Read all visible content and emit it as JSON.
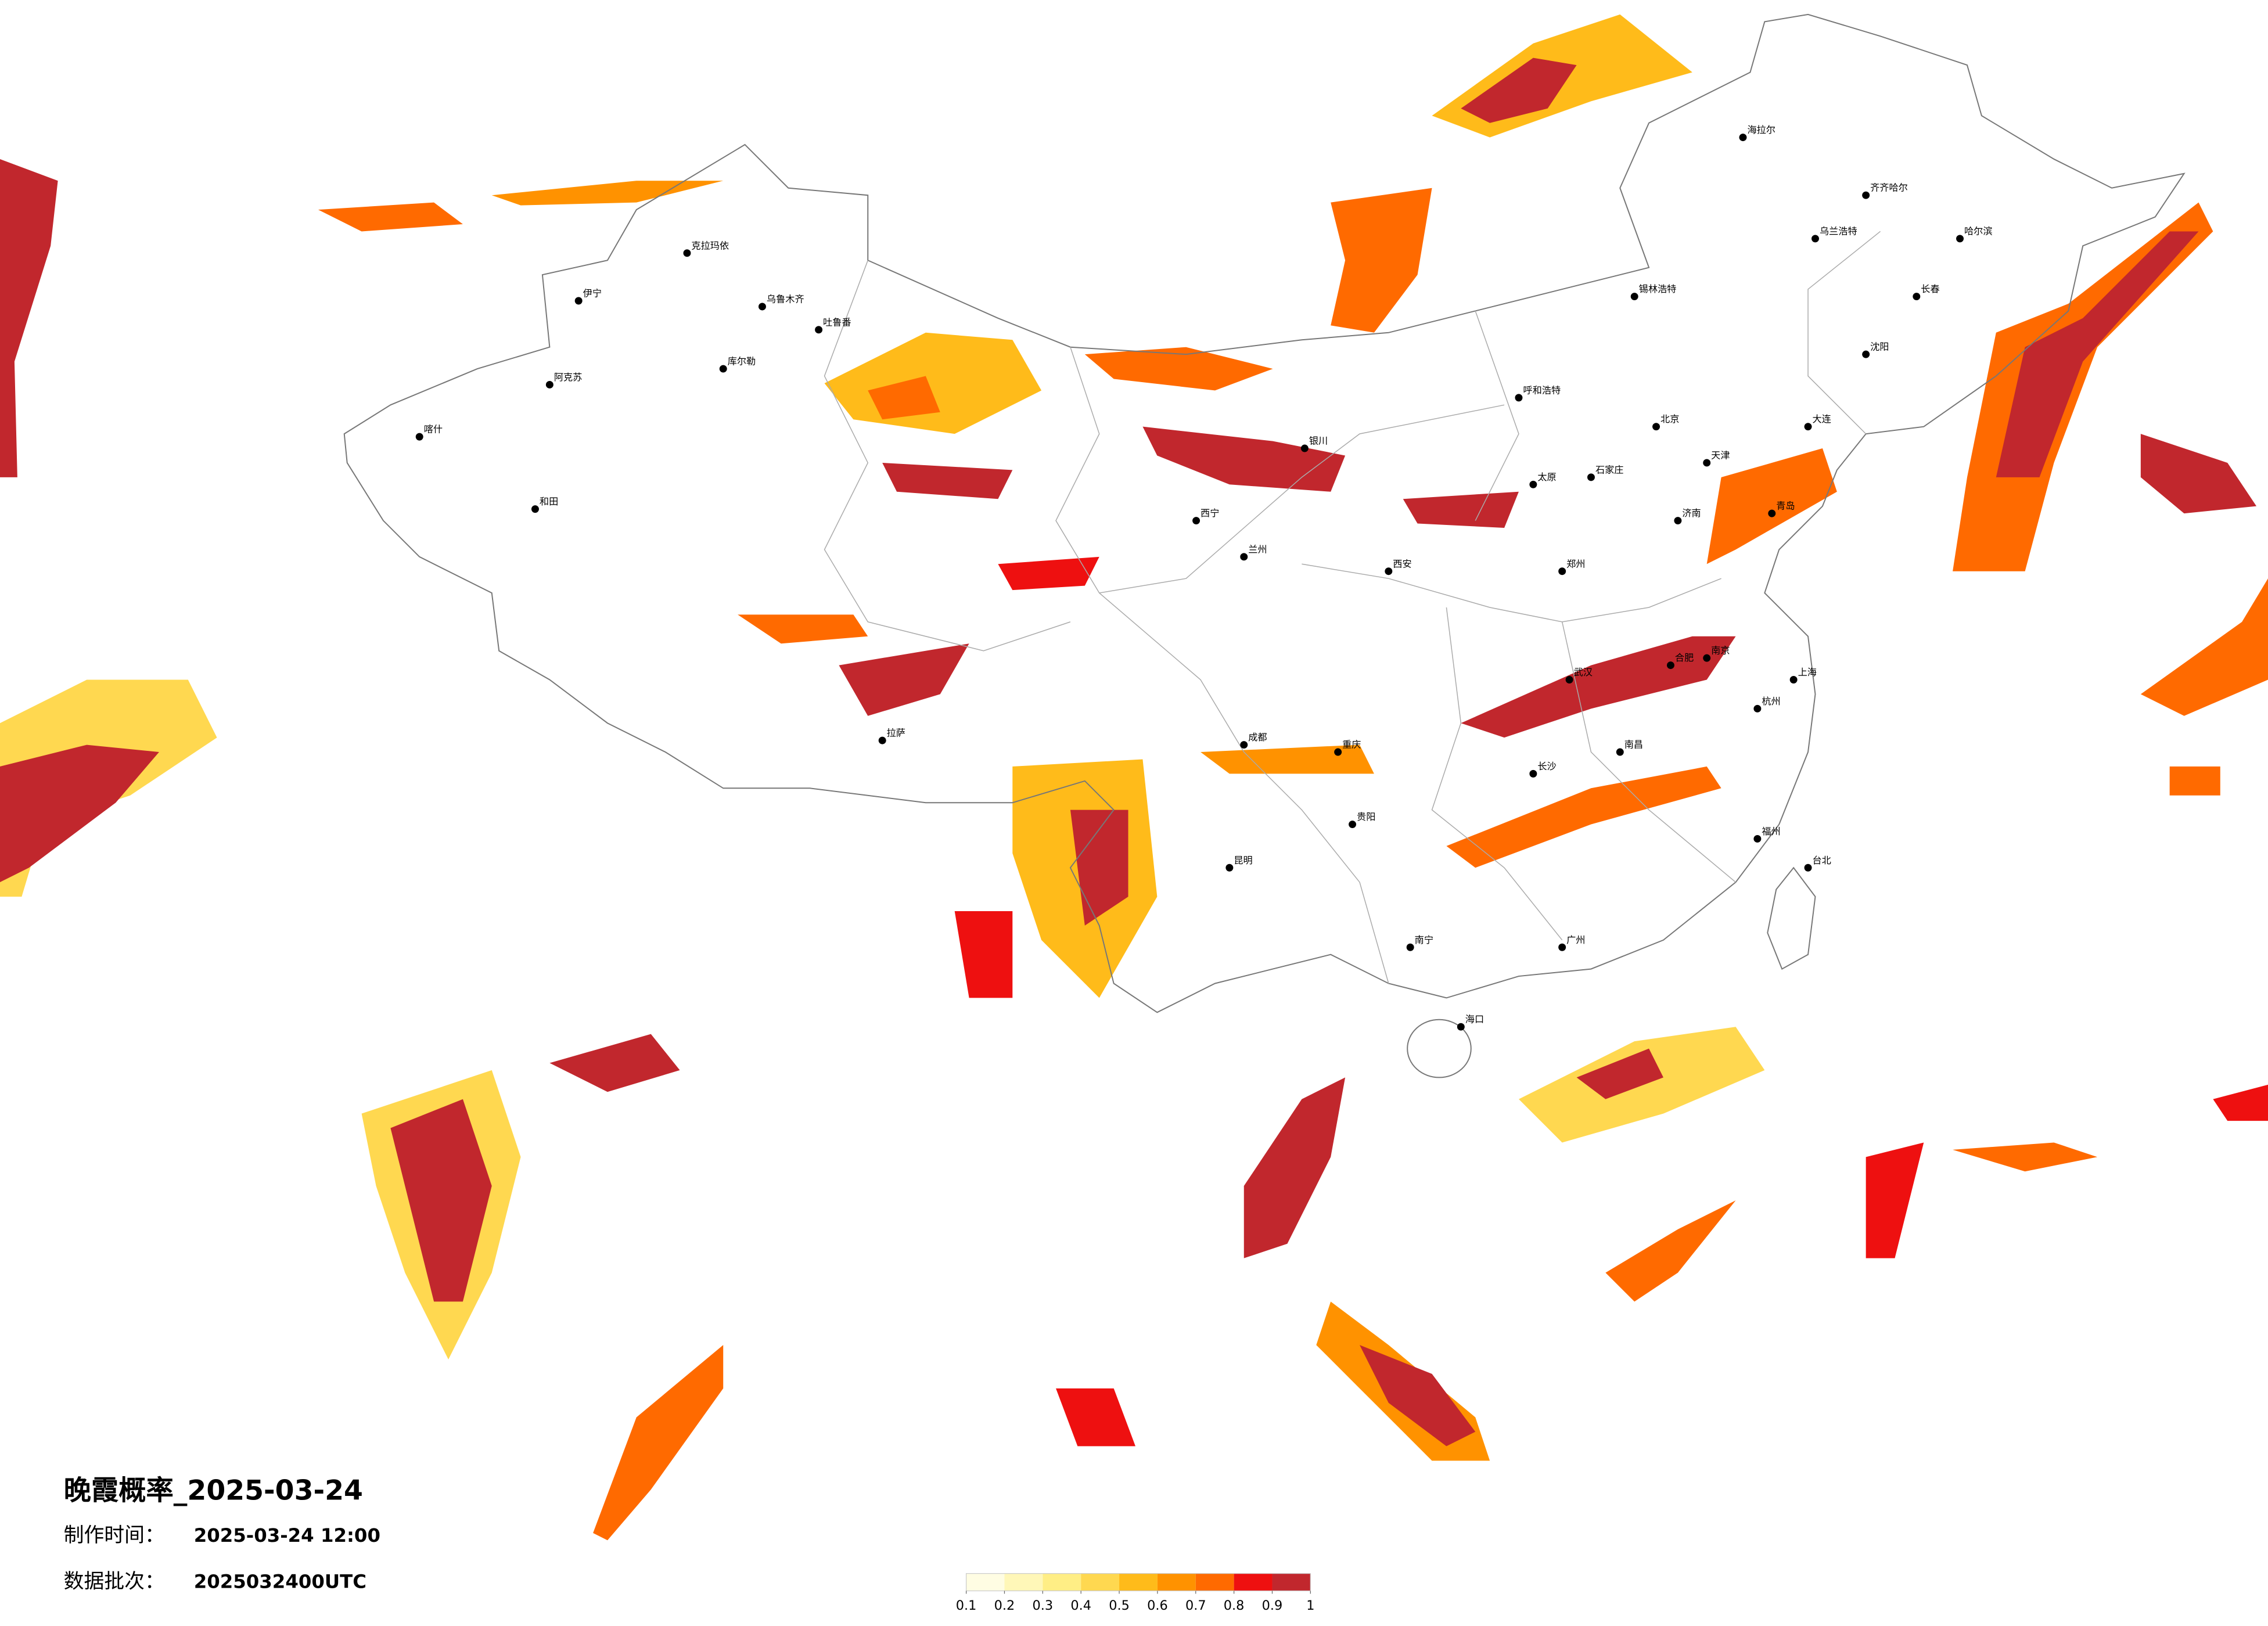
{
  "title": "晚霞概率_2025-03-24",
  "production_time": {
    "label": "制作时间：",
    "value": "2025-03-24 12:00"
  },
  "data_batch": {
    "label": "数据批次：",
    "value": "2025032400UTC"
  },
  "colorbar": {
    "ticks": [
      0.1,
      0.2,
      0.3,
      0.4,
      0.5,
      0.6,
      0.7,
      0.8,
      0.9,
      1
    ],
    "colors": [
      "#fffde3",
      "#fff7b8",
      "#ffee85",
      "#ffd850",
      "#ffbb1a",
      "#ff9200",
      "#ff6a00",
      "#ee1010",
      "#c1272d"
    ]
  },
  "cities": [
    {
      "name": "克拉玛依"
    },
    {
      "name": "乌鲁木齐"
    },
    {
      "name": "伊宁"
    },
    {
      "name": "阿克苏"
    },
    {
      "name": "喀什"
    },
    {
      "name": "和田"
    },
    {
      "name": "库尔勒"
    },
    {
      "name": "吐鲁番"
    },
    {
      "name": "拉萨"
    },
    {
      "name": "西宁"
    },
    {
      "name": "兰州"
    },
    {
      "name": "银川"
    },
    {
      "name": "呼和浩特"
    },
    {
      "name": "北京"
    },
    {
      "name": "天津"
    },
    {
      "name": "石家庄"
    },
    {
      "name": "太原"
    },
    {
      "name": "济南"
    },
    {
      "name": "郑州"
    },
    {
      "name": "西安"
    },
    {
      "name": "成都"
    },
    {
      "name": "重庆"
    },
    {
      "name": "武汉"
    },
    {
      "name": "南京"
    },
    {
      "name": "上海"
    },
    {
      "name": "杭州"
    },
    {
      "name": "合肥"
    },
    {
      "name": "长沙"
    },
    {
      "name": "南昌"
    },
    {
      "name": "福州"
    },
    {
      "name": "广州"
    },
    {
      "name": "南宁"
    },
    {
      "name": "昆明"
    },
    {
      "name": "贵阳"
    },
    {
      "name": "海口"
    },
    {
      "name": "哈尔滨"
    },
    {
      "name": "长春"
    },
    {
      "name": "沈阳"
    },
    {
      "name": "齐齐哈尔"
    },
    {
      "name": "海拉尔"
    },
    {
      "name": "台北"
    },
    {
      "name": "乌兰浩特"
    },
    {
      "name": "锡林浩特"
    },
    {
      "name": "大连"
    },
    {
      "name": "青岛"
    }
  ]
}
